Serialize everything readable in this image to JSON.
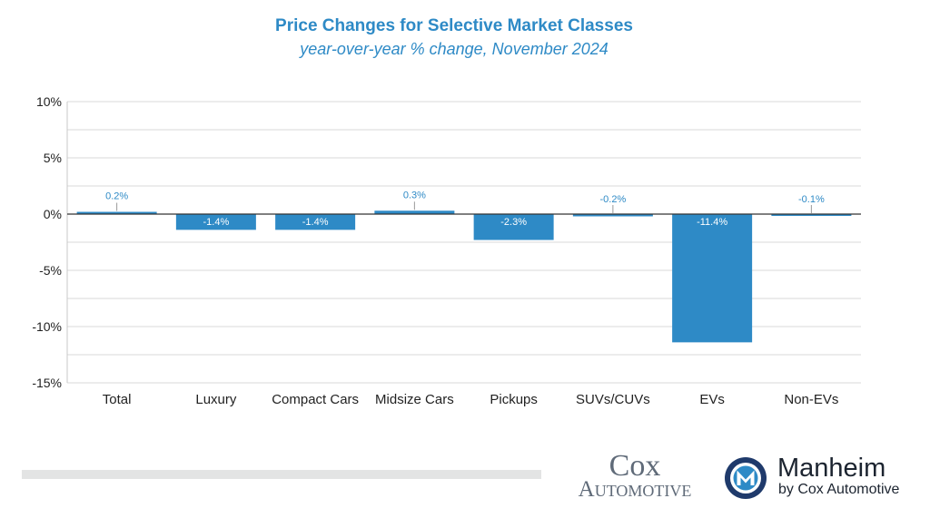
{
  "chart_data": {
    "type": "bar",
    "title": "Price Changes for Selective Market Classes",
    "subtitle": "year-over-year % change, November 2024",
    "categories": [
      "Total",
      "Luxury",
      "Compact Cars",
      "Midsize Cars",
      "Pickups",
      "SUVs/CUVs",
      "EVs",
      "Non-EVs"
    ],
    "values": [
      0.2,
      -1.4,
      -1.4,
      0.3,
      -2.3,
      -0.2,
      -11.4,
      -0.1
    ],
    "data_labels": [
      "0.2%",
      "-1.4%",
      "-1.4%",
      "0.3%",
      "-2.3%",
      "-0.2%",
      "-11.4%",
      "-0.1%"
    ],
    "y_ticks": [
      10,
      5,
      0,
      -5,
      -10,
      -15
    ],
    "y_tick_labels": [
      "10%",
      "5%",
      "0%",
      "-5%",
      "-10%",
      "-15%"
    ],
    "ylim": [
      -15,
      10
    ],
    "xlabel": "",
    "ylabel": "",
    "grid": true,
    "legend": "none",
    "bar_color": "#2e8ac6",
    "label_color": "#2e8ac6",
    "grid_color": "#d9d9d9"
  },
  "footer": {
    "cox_line1": "Cox",
    "cox_line2": "Automotive",
    "manheim_name": "Manheim",
    "manheim_sub": "by Cox Automotive"
  },
  "colors": {
    "accent": "#2e8ac6",
    "cox_gray": "#5f6a78",
    "manheim_navy": "#1f3a6b"
  }
}
